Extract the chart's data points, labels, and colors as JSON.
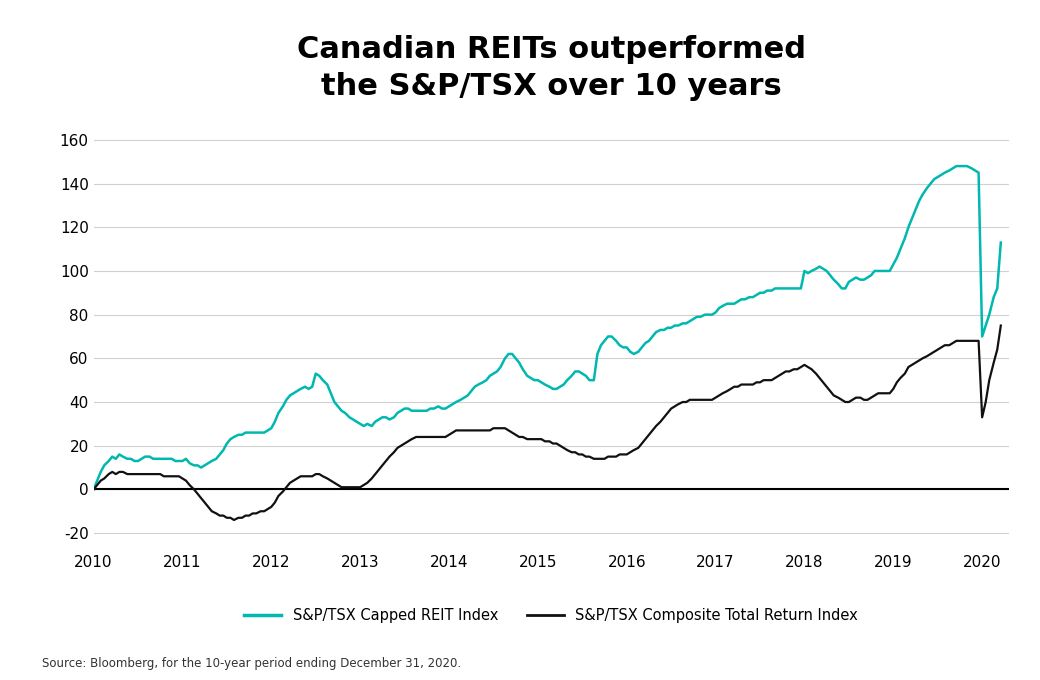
{
  "title_line1": "Canadian REITs outperformed",
  "title_line2": "the S&P/TSX over 10 years",
  "source_text": "Source: Bloomberg, for the 10-year period ending December 31, 2020.",
  "legend_reit": "S&P/TSX Capped REIT Index",
  "legend_composite": "S&P/TSX Composite Total Return Index",
  "reit_color": "#00B8B0",
  "composite_color": "#111111",
  "background_color": "#ffffff",
  "ylim": [
    -25,
    168
  ],
  "yticks": [
    -20,
    0,
    20,
    40,
    60,
    80,
    100,
    120,
    140,
    160
  ],
  "xlim_start": 2010.0,
  "xlim_end": 2020.3,
  "xticks": [
    2010,
    2011,
    2012,
    2013,
    2014,
    2015,
    2016,
    2017,
    2018,
    2019,
    2020
  ],
  "reit_x": [
    2010.0,
    2010.04,
    2010.08,
    2010.12,
    2010.17,
    2010.21,
    2010.25,
    2010.29,
    2010.33,
    2010.38,
    2010.42,
    2010.46,
    2010.5,
    2010.54,
    2010.58,
    2010.63,
    2010.67,
    2010.71,
    2010.75,
    2010.79,
    2010.83,
    2010.88,
    2010.92,
    2010.96,
    2011.0,
    2011.04,
    2011.08,
    2011.13,
    2011.17,
    2011.21,
    2011.25,
    2011.29,
    2011.33,
    2011.38,
    2011.42,
    2011.46,
    2011.5,
    2011.54,
    2011.58,
    2011.63,
    2011.67,
    2011.71,
    2011.75,
    2011.79,
    2011.83,
    2011.88,
    2011.92,
    2011.96,
    2012.0,
    2012.04,
    2012.08,
    2012.13,
    2012.17,
    2012.21,
    2012.25,
    2012.29,
    2012.33,
    2012.38,
    2012.42,
    2012.46,
    2012.5,
    2012.54,
    2012.58,
    2012.63,
    2012.67,
    2012.71,
    2012.75,
    2012.79,
    2012.83,
    2012.88,
    2012.92,
    2012.96,
    2013.0,
    2013.04,
    2013.08,
    2013.13,
    2013.17,
    2013.21,
    2013.25,
    2013.29,
    2013.33,
    2013.38,
    2013.42,
    2013.46,
    2013.5,
    2013.54,
    2013.58,
    2013.63,
    2013.67,
    2013.71,
    2013.75,
    2013.79,
    2013.83,
    2013.88,
    2013.92,
    2013.96,
    2014.0,
    2014.04,
    2014.08,
    2014.13,
    2014.17,
    2014.21,
    2014.25,
    2014.29,
    2014.33,
    2014.38,
    2014.42,
    2014.46,
    2014.5,
    2014.54,
    2014.58,
    2014.63,
    2014.67,
    2014.71,
    2014.75,
    2014.79,
    2014.83,
    2014.88,
    2014.92,
    2014.96,
    2015.0,
    2015.04,
    2015.08,
    2015.13,
    2015.17,
    2015.21,
    2015.25,
    2015.29,
    2015.33,
    2015.38,
    2015.42,
    2015.46,
    2015.5,
    2015.54,
    2015.58,
    2015.63,
    2015.67,
    2015.71,
    2015.75,
    2015.79,
    2015.83,
    2015.88,
    2015.92,
    2015.96,
    2016.0,
    2016.04,
    2016.08,
    2016.13,
    2016.17,
    2016.21,
    2016.25,
    2016.29,
    2016.33,
    2016.38,
    2016.42,
    2016.46,
    2016.5,
    2016.54,
    2016.58,
    2016.63,
    2016.67,
    2016.71,
    2016.75,
    2016.79,
    2016.83,
    2016.88,
    2016.92,
    2016.96,
    2017.0,
    2017.04,
    2017.08,
    2017.13,
    2017.17,
    2017.21,
    2017.25,
    2017.29,
    2017.33,
    2017.38,
    2017.42,
    2017.46,
    2017.5,
    2017.54,
    2017.58,
    2017.63,
    2017.67,
    2017.71,
    2017.75,
    2017.79,
    2017.83,
    2017.88,
    2017.92,
    2017.96,
    2018.0,
    2018.04,
    2018.08,
    2018.13,
    2018.17,
    2018.21,
    2018.25,
    2018.29,
    2018.33,
    2018.38,
    2018.42,
    2018.46,
    2018.5,
    2018.54,
    2018.58,
    2018.63,
    2018.67,
    2018.71,
    2018.75,
    2018.79,
    2018.83,
    2018.88,
    2018.92,
    2018.96,
    2019.0,
    2019.04,
    2019.08,
    2019.13,
    2019.17,
    2019.21,
    2019.25,
    2019.29,
    2019.33,
    2019.38,
    2019.42,
    2019.46,
    2019.5,
    2019.54,
    2019.58,
    2019.63,
    2019.67,
    2019.71,
    2019.75,
    2019.79,
    2019.83,
    2019.88,
    2019.92,
    2019.96,
    2020.0,
    2020.04,
    2020.08,
    2020.13,
    2020.17,
    2020.21
  ],
  "reit_y": [
    0,
    4,
    8,
    11,
    13,
    15,
    14,
    16,
    15,
    14,
    14,
    13,
    13,
    14,
    15,
    15,
    14,
    14,
    14,
    14,
    14,
    14,
    13,
    13,
    13,
    14,
    12,
    11,
    11,
    10,
    11,
    12,
    13,
    14,
    16,
    18,
    21,
    23,
    24,
    25,
    25,
    26,
    26,
    26,
    26,
    26,
    26,
    27,
    28,
    31,
    35,
    38,
    41,
    43,
    44,
    45,
    46,
    47,
    46,
    47,
    53,
    52,
    50,
    48,
    44,
    40,
    38,
    36,
    35,
    33,
    32,
    31,
    30,
    29,
    30,
    29,
    31,
    32,
    33,
    33,
    32,
    33,
    35,
    36,
    37,
    37,
    36,
    36,
    36,
    36,
    36,
    37,
    37,
    38,
    37,
    37,
    38,
    39,
    40,
    41,
    42,
    43,
    45,
    47,
    48,
    49,
    50,
    52,
    53,
    54,
    56,
    60,
    62,
    62,
    60,
    58,
    55,
    52,
    51,
    50,
    50,
    49,
    48,
    47,
    46,
    46,
    47,
    48,
    50,
    52,
    54,
    54,
    53,
    52,
    50,
    50,
    62,
    66,
    68,
    70,
    70,
    68,
    66,
    65,
    65,
    63,
    62,
    63,
    65,
    67,
    68,
    70,
    72,
    73,
    73,
    74,
    74,
    75,
    75,
    76,
    76,
    77,
    78,
    79,
    79,
    80,
    80,
    80,
    81,
    83,
    84,
    85,
    85,
    85,
    86,
    87,
    87,
    88,
    88,
    89,
    90,
    90,
    91,
    91,
    92,
    92,
    92,
    92,
    92,
    92,
    92,
    92,
    100,
    99,
    100,
    101,
    102,
    101,
    100,
    98,
    96,
    94,
    92,
    92,
    95,
    96,
    97,
    96,
    96,
    97,
    98,
    100,
    100,
    100,
    100,
    100,
    103,
    106,
    110,
    115,
    120,
    124,
    128,
    132,
    135,
    138,
    140,
    142,
    143,
    144,
    145,
    146,
    147,
    148,
    148,
    148,
    148,
    147,
    146,
    145,
    70,
    75,
    80,
    88,
    92,
    113
  ],
  "composite_x": [
    2010.0,
    2010.04,
    2010.08,
    2010.12,
    2010.17,
    2010.21,
    2010.25,
    2010.29,
    2010.33,
    2010.38,
    2010.42,
    2010.46,
    2010.5,
    2010.54,
    2010.58,
    2010.63,
    2010.67,
    2010.71,
    2010.75,
    2010.79,
    2010.83,
    2010.88,
    2010.92,
    2010.96,
    2011.0,
    2011.04,
    2011.08,
    2011.13,
    2011.17,
    2011.21,
    2011.25,
    2011.29,
    2011.33,
    2011.38,
    2011.42,
    2011.46,
    2011.5,
    2011.54,
    2011.58,
    2011.63,
    2011.67,
    2011.71,
    2011.75,
    2011.79,
    2011.83,
    2011.88,
    2011.92,
    2011.96,
    2012.0,
    2012.04,
    2012.08,
    2012.13,
    2012.17,
    2012.21,
    2012.25,
    2012.29,
    2012.33,
    2012.38,
    2012.42,
    2012.46,
    2012.5,
    2012.54,
    2012.58,
    2012.63,
    2012.67,
    2012.71,
    2012.75,
    2012.79,
    2012.83,
    2012.88,
    2012.92,
    2012.96,
    2013.0,
    2013.04,
    2013.08,
    2013.13,
    2013.17,
    2013.21,
    2013.25,
    2013.29,
    2013.33,
    2013.38,
    2013.42,
    2013.46,
    2013.5,
    2013.54,
    2013.58,
    2013.63,
    2013.67,
    2013.71,
    2013.75,
    2013.79,
    2013.83,
    2013.88,
    2013.92,
    2013.96,
    2014.0,
    2014.04,
    2014.08,
    2014.13,
    2014.17,
    2014.21,
    2014.25,
    2014.29,
    2014.33,
    2014.38,
    2014.42,
    2014.46,
    2014.5,
    2014.54,
    2014.58,
    2014.63,
    2014.67,
    2014.71,
    2014.75,
    2014.79,
    2014.83,
    2014.88,
    2014.92,
    2014.96,
    2015.0,
    2015.04,
    2015.08,
    2015.13,
    2015.17,
    2015.21,
    2015.25,
    2015.29,
    2015.33,
    2015.38,
    2015.42,
    2015.46,
    2015.5,
    2015.54,
    2015.58,
    2015.63,
    2015.67,
    2015.71,
    2015.75,
    2015.79,
    2015.83,
    2015.88,
    2015.92,
    2015.96,
    2016.0,
    2016.04,
    2016.08,
    2016.13,
    2016.17,
    2016.21,
    2016.25,
    2016.29,
    2016.33,
    2016.38,
    2016.42,
    2016.46,
    2016.5,
    2016.54,
    2016.58,
    2016.63,
    2016.67,
    2016.71,
    2016.75,
    2016.79,
    2016.83,
    2016.88,
    2016.92,
    2016.96,
    2017.0,
    2017.04,
    2017.08,
    2017.13,
    2017.17,
    2017.21,
    2017.25,
    2017.29,
    2017.33,
    2017.38,
    2017.42,
    2017.46,
    2017.5,
    2017.54,
    2017.58,
    2017.63,
    2017.67,
    2017.71,
    2017.75,
    2017.79,
    2017.83,
    2017.88,
    2017.92,
    2017.96,
    2018.0,
    2018.04,
    2018.08,
    2018.13,
    2018.17,
    2018.21,
    2018.25,
    2018.29,
    2018.33,
    2018.38,
    2018.42,
    2018.46,
    2018.5,
    2018.54,
    2018.58,
    2018.63,
    2018.67,
    2018.71,
    2018.75,
    2018.79,
    2018.83,
    2018.88,
    2018.92,
    2018.96,
    2019.0,
    2019.04,
    2019.08,
    2019.13,
    2019.17,
    2019.21,
    2019.25,
    2019.29,
    2019.33,
    2019.38,
    2019.42,
    2019.46,
    2019.5,
    2019.54,
    2019.58,
    2019.63,
    2019.67,
    2019.71,
    2019.75,
    2019.79,
    2019.83,
    2019.88,
    2019.92,
    2019.96,
    2020.0,
    2020.04,
    2020.08,
    2020.13,
    2020.17,
    2020.21
  ],
  "composite_y": [
    0,
    2,
    4,
    5,
    7,
    8,
    7,
    8,
    8,
    7,
    7,
    7,
    7,
    7,
    7,
    7,
    7,
    7,
    7,
    6,
    6,
    6,
    6,
    6,
    5,
    4,
    2,
    0,
    -2,
    -4,
    -6,
    -8,
    -10,
    -11,
    -12,
    -12,
    -13,
    -13,
    -14,
    -13,
    -13,
    -12,
    -12,
    -11,
    -11,
    -10,
    -10,
    -9,
    -8,
    -6,
    -3,
    -1,
    1,
    3,
    4,
    5,
    6,
    6,
    6,
    6,
    7,
    7,
    6,
    5,
    4,
    3,
    2,
    1,
    1,
    1,
    1,
    1,
    1,
    2,
    3,
    5,
    7,
    9,
    11,
    13,
    15,
    17,
    19,
    20,
    21,
    22,
    23,
    24,
    24,
    24,
    24,
    24,
    24,
    24,
    24,
    24,
    25,
    26,
    27,
    27,
    27,
    27,
    27,
    27,
    27,
    27,
    27,
    27,
    28,
    28,
    28,
    28,
    27,
    26,
    25,
    24,
    24,
    23,
    23,
    23,
    23,
    23,
    22,
    22,
    21,
    21,
    20,
    19,
    18,
    17,
    17,
    16,
    16,
    15,
    15,
    14,
    14,
    14,
    14,
    15,
    15,
    15,
    16,
    16,
    16,
    17,
    18,
    19,
    21,
    23,
    25,
    27,
    29,
    31,
    33,
    35,
    37,
    38,
    39,
    40,
    40,
    41,
    41,
    41,
    41,
    41,
    41,
    41,
    42,
    43,
    44,
    45,
    46,
    47,
    47,
    48,
    48,
    48,
    48,
    49,
    49,
    50,
    50,
    50,
    51,
    52,
    53,
    54,
    54,
    55,
    55,
    56,
    57,
    56,
    55,
    53,
    51,
    49,
    47,
    45,
    43,
    42,
    41,
    40,
    40,
    41,
    42,
    42,
    41,
    41,
    42,
    43,
    44,
    44,
    44,
    44,
    46,
    49,
    51,
    53,
    56,
    57,
    58,
    59,
    60,
    61,
    62,
    63,
    64,
    65,
    66,
    66,
    67,
    68,
    68,
    68,
    68,
    68,
    68,
    68,
    33,
    40,
    50,
    58,
    64,
    75
  ]
}
